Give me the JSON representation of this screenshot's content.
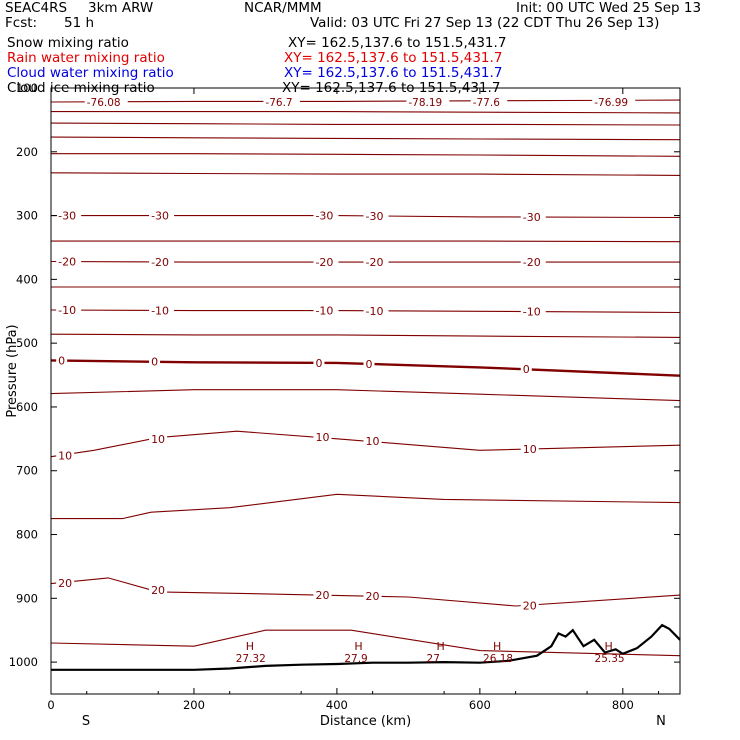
{
  "header": {
    "project": "SEAC4RS",
    "model": "3km ARW",
    "center": "NCAR/MMM",
    "init": "Init: 00 UTC Wed 25 Sep 13",
    "fcst_label": "Fcst:",
    "fcst_value": "51 h",
    "valid": "Valid: 03 UTC Fri 27 Sep 13 (22 CDT Thu 26 Sep 13)"
  },
  "fields": [
    {
      "name": "Snow mixing ratio",
      "xy": "XY= 162.5,137.6 to 151.5,431.7",
      "color": "#000000"
    },
    {
      "name": "Rain water mixing ratio",
      "xy": "XY= 162.5,137.6 to 151.5,431.7",
      "color": "#e00000"
    },
    {
      "name": "Cloud water mixing ratio",
      "xy": "XY= 162.5,137.6 to 151.5,431.7",
      "color": "#0000e0"
    },
    {
      "name": "Cloud ice mixing ratio",
      "xy": "XY= 162.5,137.6 to 151.5,431.7",
      "color": "#000000"
    }
  ],
  "colors": {
    "contour": "#800000",
    "axis": "#000000",
    "terrain": "#000000"
  },
  "chart_data": {
    "type": "line",
    "title": "",
    "xlabel": "Distance (km)",
    "ylabel": "Pressure (hPa)",
    "xlim": [
      0,
      880
    ],
    "ylim": [
      1050,
      100
    ],
    "y_reversed": true,
    "x_ticks": [
      0,
      200,
      400,
      600,
      800
    ],
    "y_ticks": [
      100,
      200,
      300,
      400,
      500,
      600,
      700,
      800,
      900,
      1000
    ],
    "x_end_labels": {
      "left": "S",
      "right": "N"
    },
    "contour_interval_lines": [
      {
        "label": "",
        "values": [
          [
            0,
            122
          ],
          [
            200,
            121
          ],
          [
            400,
            121
          ],
          [
            600,
            120
          ],
          [
            880,
            119
          ]
        ],
        "bold": false
      },
      {
        "label": "",
        "values": [
          [
            0,
            137
          ],
          [
            200,
            137
          ],
          [
            400,
            137
          ],
          [
            600,
            138
          ],
          [
            880,
            139
          ]
        ],
        "bold": false
      },
      {
        "label": "",
        "values": [
          [
            0,
            155
          ],
          [
            200,
            156
          ],
          [
            400,
            157
          ],
          [
            600,
            157
          ],
          [
            880,
            158
          ]
        ],
        "bold": false
      },
      {
        "label": "",
        "values": [
          [
            0,
            177
          ],
          [
            200,
            178
          ],
          [
            400,
            179
          ],
          [
            600,
            180
          ],
          [
            880,
            181
          ]
        ],
        "bold": false
      },
      {
        "label": "",
        "values": [
          [
            0,
            203
          ],
          [
            200,
            203
          ],
          [
            400,
            204
          ],
          [
            600,
            205
          ],
          [
            880,
            207
          ]
        ],
        "bold": false
      },
      {
        "label": "",
        "values": [
          [
            0,
            233
          ],
          [
            200,
            234
          ],
          [
            400,
            235
          ],
          [
            600,
            235
          ],
          [
            880,
            237
          ]
        ],
        "bold": false
      },
      {
        "label": "-30",
        "values": [
          [
            0,
            300
          ],
          [
            200,
            300
          ],
          [
            400,
            300
          ],
          [
            600,
            302
          ],
          [
            880,
            303
          ]
        ],
        "bold": false
      },
      {
        "label": "",
        "values": [
          [
            0,
            340
          ],
          [
            200,
            340
          ],
          [
            400,
            340
          ],
          [
            600,
            340
          ],
          [
            880,
            341
          ]
        ],
        "bold": false
      },
      {
        "label": "-20",
        "values": [
          [
            0,
            372
          ],
          [
            200,
            373
          ],
          [
            400,
            373
          ],
          [
            600,
            373
          ],
          [
            880,
            373
          ]
        ],
        "bold": false
      },
      {
        "label": "",
        "values": [
          [
            0,
            412
          ],
          [
            200,
            412
          ],
          [
            400,
            412
          ],
          [
            600,
            412
          ],
          [
            880,
            412
          ]
        ],
        "bold": false
      },
      {
        "label": "-10",
        "values": [
          [
            0,
            448
          ],
          [
            200,
            449
          ],
          [
            400,
            449
          ],
          [
            600,
            450
          ],
          [
            880,
            452
          ]
        ],
        "bold": false
      },
      {
        "label": "",
        "values": [
          [
            0,
            486
          ],
          [
            200,
            487
          ],
          [
            400,
            487
          ],
          [
            600,
            489
          ],
          [
            880,
            491
          ]
        ],
        "bold": false
      },
      {
        "label": "0",
        "values": [
          [
            0,
            527
          ],
          [
            200,
            530
          ],
          [
            400,
            531
          ],
          [
            600,
            538
          ],
          [
            880,
            551
          ]
        ],
        "bold": true
      },
      {
        "label": "",
        "values": [
          [
            0,
            579
          ],
          [
            200,
            573
          ],
          [
            400,
            573
          ],
          [
            600,
            580
          ],
          [
            880,
            590
          ]
        ],
        "bold": false
      },
      {
        "label": "10",
        "values": [
          [
            0,
            678
          ],
          [
            60,
            668
          ],
          [
            150,
            648
          ],
          [
            260,
            638
          ],
          [
            400,
            650
          ],
          [
            600,
            668
          ],
          [
            880,
            660
          ]
        ],
        "bold": false
      },
      {
        "label": "",
        "values": [
          [
            0,
            775
          ],
          [
            100,
            775
          ],
          [
            140,
            765
          ],
          [
            250,
            758
          ],
          [
            400,
            737
          ],
          [
            550,
            745
          ],
          [
            880,
            750
          ]
        ],
        "bold": false
      },
      {
        "label": "20",
        "values": [
          [
            0,
            877
          ],
          [
            80,
            868
          ],
          [
            150,
            890
          ],
          [
            300,
            893
          ],
          [
            500,
            898
          ],
          [
            650,
            912
          ],
          [
            880,
            895
          ]
        ],
        "bold": false
      },
      {
        "label": "",
        "values": [
          [
            0,
            970
          ],
          [
            200,
            975
          ],
          [
            300,
            950
          ],
          [
            420,
            950
          ],
          [
            600,
            982
          ],
          [
            880,
            990
          ]
        ],
        "bold": false
      }
    ],
    "tmin_labels": [
      "-76.08",
      "-76.7",
      "-78.19",
      "-77.6",
      "-76.99"
    ],
    "surface_labels": [
      {
        "text": "H",
        "x": 278,
        "value": "27.32"
      },
      {
        "text": "H",
        "x": 430,
        "value": "27.9"
      },
      {
        "text": "H",
        "x": 545,
        "value": "27"
      },
      {
        "text": "H",
        "x": 624,
        "value": "26.18"
      },
      {
        "text": "H",
        "x": 780,
        "value": "25.35"
      }
    ],
    "terrain": [
      [
        0,
        1012
      ],
      [
        100,
        1012
      ],
      [
        200,
        1012
      ],
      [
        250,
        1010
      ],
      [
        300,
        1006
      ],
      [
        350,
        1004
      ],
      [
        400,
        1003
      ],
      [
        450,
        1001
      ],
      [
        500,
        1001
      ],
      [
        550,
        1000
      ],
      [
        600,
        1001
      ],
      [
        640,
        998
      ],
      [
        680,
        990
      ],
      [
        700,
        975
      ],
      [
        710,
        955
      ],
      [
        720,
        960
      ],
      [
        730,
        950
      ],
      [
        745,
        975
      ],
      [
        760,
        965
      ],
      [
        775,
        985
      ],
      [
        790,
        980
      ],
      [
        800,
        987
      ],
      [
        820,
        978
      ],
      [
        840,
        960
      ],
      [
        855,
        942
      ],
      [
        865,
        948
      ],
      [
        880,
        965
      ]
    ]
  }
}
